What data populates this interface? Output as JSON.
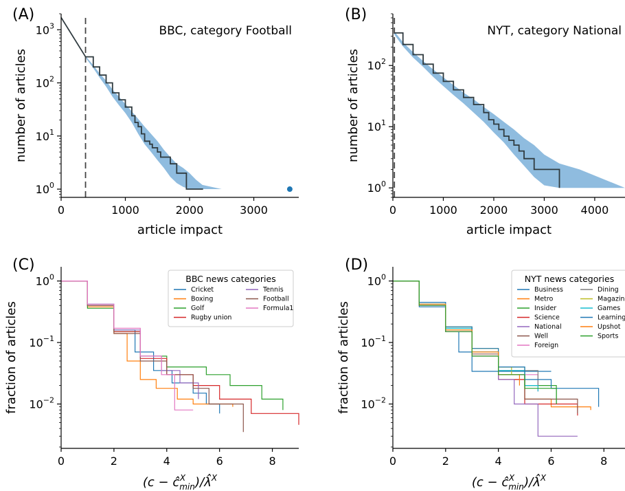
{
  "chart_data": [
    {
      "panel": "(A)",
      "type": "line",
      "annotation": "BBC, category Football",
      "xlabel": "article impact",
      "ylabel": "number of articles",
      "xscale": "linear",
      "yscale": "log",
      "xlim": [
        0,
        3700
      ],
      "ylim": [
        0.7,
        2000
      ],
      "xticks": [
        0,
        1000,
        2000,
        3000
      ],
      "xtick_labels": [
        "0",
        "1000",
        "2000",
        "3000"
      ],
      "yticks": [
        1,
        10,
        100,
        1000
      ],
      "ytick_labels": [
        "10",
        "10",
        "10",
        "10"
      ],
      "ytick_exponents": [
        "0",
        "1",
        "2",
        "3"
      ],
      "cutoff_x": 380,
      "colors": {
        "band": "#8fbcdf",
        "line": "#2f3a3f",
        "outlier": "#1f77b4"
      },
      "fit_line": {
        "x": [
          0,
          380
        ],
        "y": [
          1700,
          310
        ]
      },
      "series": [
        {
          "x": [
            380,
            500,
            600,
            700,
            800,
            900,
            1000,
            1100,
            1150,
            1200,
            1250,
            1300,
            1380,
            1420,
            1500,
            1550,
            1650,
            1700,
            1750,
            1800,
            1850,
            1900,
            1950,
            2000,
            2210
          ],
          "y": [
            310,
            200,
            140,
            100,
            65,
            48,
            35,
            24,
            18,
            15,
            11,
            8,
            7,
            6,
            5,
            4,
            4,
            3,
            3,
            2,
            2,
            2,
            1,
            1,
            1
          ]
        }
      ],
      "band": {
        "x": [
          380,
          500,
          600,
          700,
          800,
          900,
          1000,
          1100,
          1200,
          1300,
          1400,
          1500,
          1600,
          1700,
          1800,
          1900,
          2000,
          2100,
          2200,
          2500
        ],
        "lo": [
          300,
          190,
          125,
          85,
          55,
          38,
          27,
          18,
          11,
          7,
          5,
          3.5,
          2.5,
          1.7,
          1.3,
          1.1,
          1,
          1,
          1,
          1
        ],
        "hi": [
          320,
          215,
          150,
          110,
          75,
          55,
          40,
          29,
          21,
          15,
          11,
          8,
          5.5,
          4,
          3,
          2.5,
          2,
          1.5,
          1.2,
          1
        ]
      },
      "outlier": {
        "x": 3560,
        "y": 1
      }
    },
    {
      "panel": "(B)",
      "type": "line",
      "annotation": "NYT, category National",
      "xlabel": "article impact",
      "ylabel": "number of articles",
      "xscale": "linear",
      "yscale": "log",
      "xlim": [
        0,
        4600
      ],
      "ylim": [
        0.7,
        700
      ],
      "xticks": [
        0,
        1000,
        2000,
        3000,
        4000
      ],
      "xtick_labels": [
        "0",
        "1000",
        "2000",
        "3000",
        "4000"
      ],
      "yticks": [
        1,
        10,
        100
      ],
      "ytick_labels": [
        "10",
        "10",
        "10"
      ],
      "ytick_exponents": [
        "0",
        "1",
        "2"
      ],
      "cutoff_x": 30,
      "colors": {
        "band": "#8fbcdf",
        "line": "#2f3a3f"
      },
      "series": [
        {
          "x": [
            30,
            200,
            400,
            600,
            800,
            1000,
            1200,
            1400,
            1600,
            1800,
            1900,
            2000,
            2100,
            2200,
            2300,
            2400,
            2500,
            2600,
            2700,
            2800,
            2900,
            3300,
            3300
          ],
          "y": [
            340,
            220,
            150,
            105,
            75,
            55,
            40,
            30,
            23,
            17,
            13,
            11,
            9,
            7,
            6,
            5,
            4,
            3,
            3,
            2,
            2,
            2,
            1
          ]
        }
      ],
      "band": {
        "x": [
          30,
          200,
          400,
          600,
          800,
          1000,
          1200,
          1400,
          1600,
          1800,
          2000,
          2200,
          2400,
          2600,
          2800,
          3000,
          3300,
          3700,
          4600
        ],
        "lo": [
          320,
          205,
          135,
          95,
          65,
          46,
          33,
          24,
          17,
          12,
          8,
          5.5,
          3.5,
          2.3,
          1.5,
          1.1,
          1,
          1,
          1
        ],
        "hi": [
          360,
          240,
          165,
          118,
          86,
          64,
          48,
          36,
          28,
          21,
          16,
          12,
          9,
          6.5,
          5,
          3.5,
          2.5,
          2,
          1
        ]
      }
    },
    {
      "panel": "(C)",
      "type": "line",
      "xlabel": "(c − ĉ",
      "xlabel_sub": "min",
      "xlabel_sup": "X",
      "xlabel_mid": ")/λ̂",
      "xlabel_sup2": "X",
      "ylabel": "fraction of articles",
      "xscale": "linear",
      "yscale": "log",
      "xlim": [
        0,
        9
      ],
      "ylim": [
        0.0019,
        1.7
      ],
      "xticks": [
        0,
        2,
        4,
        6,
        8
      ],
      "xtick_labels": [
        "0",
        "2",
        "4",
        "6",
        "8"
      ],
      "yticks": [
        0.01,
        0.1,
        1
      ],
      "ytick_labels": [
        "10",
        "10",
        "10"
      ],
      "ytick_exponents": [
        "−2",
        "−1",
        "0"
      ],
      "legend_title": "BBC news categories",
      "legend_position": "top-right",
      "series": [
        {
          "name": "Cricket",
          "color": "#1f77b4",
          "x": [
            0,
            1,
            2,
            2.8,
            3.5,
            4.2,
            5.0,
            5.5,
            6.0
          ],
          "y": [
            1,
            0.42,
            0.16,
            0.07,
            0.035,
            0.022,
            0.015,
            0.01,
            0.007
          ]
        },
        {
          "name": "Boxing",
          "color": "#ff7f0e",
          "x": [
            0,
            1,
            2,
            2.5,
            3.0,
            3.6,
            4.4,
            5.0,
            6.5
          ],
          "y": [
            1,
            0.38,
            0.14,
            0.05,
            0.025,
            0.018,
            0.012,
            0.01,
            0.009
          ]
        },
        {
          "name": "Golf",
          "color": "#2ca02c",
          "x": [
            0,
            1,
            2,
            3,
            4,
            5.5,
            6.4,
            7.6,
            8.4
          ],
          "y": [
            1,
            0.36,
            0.15,
            0.06,
            0.04,
            0.03,
            0.02,
            0.012,
            0.008
          ]
        },
        {
          "name": "Rugby union",
          "color": "#d62728",
          "x": [
            0,
            1,
            2,
            3,
            4,
            5,
            6,
            7.2,
            9
          ],
          "y": [
            1,
            0.4,
            0.15,
            0.055,
            0.03,
            0.02,
            0.012,
            0.007,
            0.0046
          ]
        },
        {
          "name": "Tennis",
          "color": "#9467bd",
          "x": [
            0,
            1,
            2,
            3,
            3.8,
            4.5,
            5.2
          ],
          "y": [
            1,
            0.4,
            0.16,
            0.06,
            0.035,
            0.022,
            0.012
          ]
        },
        {
          "name": "Football",
          "color": "#8c564b",
          "x": [
            0,
            1,
            2,
            3,
            4,
            5,
            5.6,
            6.9
          ],
          "y": [
            1,
            0.4,
            0.14,
            0.05,
            0.03,
            0.018,
            0.01,
            0.0035
          ]
        },
        {
          "name": "Formula1",
          "color": "#e377c2",
          "x": [
            0,
            1,
            2,
            3,
            3.8,
            4.3,
            5.0
          ],
          "y": [
            1,
            0.42,
            0.17,
            0.06,
            0.03,
            0.008,
            0.008
          ]
        }
      ]
    },
    {
      "panel": "(D)",
      "type": "line",
      "xlabel": "(c − ĉ",
      "xlabel_sub": "min",
      "xlabel_sup": "X",
      "xlabel_mid": ")/λ̂",
      "xlabel_sup2": "X",
      "ylabel": "fraction of articles",
      "xscale": "linear",
      "yscale": "log",
      "xlim": [
        0,
        8.8
      ],
      "ylim": [
        0.0019,
        1.7
      ],
      "xticks": [
        0,
        2,
        4,
        6,
        8
      ],
      "xtick_labels": [
        "0",
        "2",
        "4",
        "6",
        "8"
      ],
      "yticks": [
        0.01,
        0.1,
        1
      ],
      "ytick_labels": [
        "10",
        "10",
        "10"
      ],
      "ytick_exponents": [
        "−2",
        "−1",
        "0"
      ],
      "legend_title": "NYT news categories",
      "legend_position": "top-right",
      "series": [
        {
          "name": "Business",
          "color": "#1f77b4",
          "x": [
            0,
            1,
            2,
            2.5,
            3.0,
            6.0
          ],
          "y": [
            1,
            0.38,
            0.15,
            0.07,
            0.034,
            0.034
          ]
        },
        {
          "name": "Metro",
          "color": "#ff7f0e",
          "x": [
            0,
            1,
            2,
            3,
            4,
            5,
            6,
            7.5
          ],
          "y": [
            1,
            0.4,
            0.15,
            0.06,
            0.025,
            0.012,
            0.009,
            0.008
          ]
        },
        {
          "name": "Insider",
          "color": "#2ca02c",
          "x": [
            0,
            1,
            2,
            3,
            4,
            5,
            6.2
          ],
          "y": [
            1,
            0.42,
            0.16,
            0.07,
            0.04,
            0.02,
            0.01
          ]
        },
        {
          "name": "Science",
          "color": "#d62728",
          "x": [
            0,
            1,
            2,
            3,
            4,
            5,
            7
          ],
          "y": [
            1,
            0.4,
            0.15,
            0.06,
            0.025,
            0.01,
            0.0065
          ]
        },
        {
          "name": "National",
          "color": "#9467bd",
          "x": [
            0,
            1,
            2,
            3,
            4,
            4.6,
            5.5,
            7
          ],
          "y": [
            1,
            0.4,
            0.15,
            0.06,
            0.025,
            0.01,
            0.003,
            0.003
          ]
        },
        {
          "name": "Well",
          "color": "#8c564b",
          "x": [
            0,
            1,
            2,
            3,
            4,
            5,
            7
          ],
          "y": [
            1,
            0.4,
            0.15,
            0.065,
            0.03,
            0.012,
            0.007
          ]
        },
        {
          "name": "Foreign",
          "color": "#e377c2",
          "x": [
            0,
            1,
            2,
            3,
            4,
            5.5
          ],
          "y": [
            1,
            0.4,
            0.15,
            0.06,
            0.03,
            0.016
          ]
        },
        {
          "name": "Dining",
          "color": "#7f7f7f",
          "x": [
            0,
            1,
            2,
            3,
            4,
            5.5
          ],
          "y": [
            1,
            0.42,
            0.17,
            0.07,
            0.035,
            0.02
          ]
        },
        {
          "name": "Magazine",
          "color": "#bcbd22",
          "x": [
            0,
            1,
            2,
            3,
            4,
            4.5
          ],
          "y": [
            1,
            0.42,
            0.18,
            0.08,
            0.04,
            0.03
          ]
        },
        {
          "name": "Games",
          "color": "#17becf",
          "x": [
            0,
            1,
            2,
            3,
            4,
            5,
            5.5
          ],
          "y": [
            1,
            0.42,
            0.17,
            0.07,
            0.035,
            0.02,
            0.016
          ]
        },
        {
          "name": "Learning",
          "color": "#1f77b4",
          "x": [
            0,
            1,
            2,
            3,
            4,
            5,
            6,
            7.8
          ],
          "y": [
            1,
            0.45,
            0.18,
            0.08,
            0.04,
            0.025,
            0.018,
            0.009
          ]
        },
        {
          "name": "Upshot",
          "color": "#ff7f0e",
          "x": [
            0,
            1,
            2,
            3,
            4,
            4.8
          ],
          "y": [
            1,
            0.42,
            0.16,
            0.07,
            0.03,
            0.02
          ]
        },
        {
          "name": "Sports",
          "color": "#2ca02c",
          "x": [
            0,
            1,
            2,
            3,
            4,
            5,
            6.2
          ],
          "y": [
            1,
            0.4,
            0.15,
            0.06,
            0.03,
            0.018,
            0.01
          ]
        }
      ]
    }
  ]
}
